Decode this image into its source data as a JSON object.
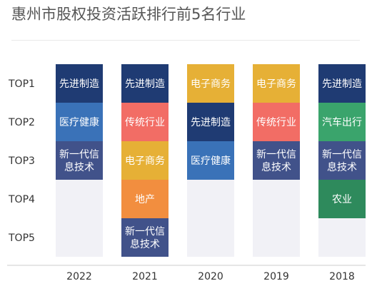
{
  "title": "惠州市股权投资活跃排行前5名行业",
  "colors": {
    "先进制造": "#1f3b73",
    "医疗健康": "#3a72b8",
    "新一代信息技术": "#41528a",
    "传统行业": "#f26d65",
    "电子商务": "#e6b036",
    "地产": "#f28e3f",
    "汽车出行": "#3aa46c",
    "农业": "#2e8a5c",
    "empty": "#f1f1f6"
  },
  "chart_data": {
    "type": "table",
    "title": "惠州市股权投资活跃排行前5名行业",
    "rows": [
      "TOP1",
      "TOP2",
      "TOP3",
      "TOP4",
      "TOP5"
    ],
    "columns": [
      "2022",
      "2021",
      "2020",
      "2019",
      "2018"
    ],
    "cells": {
      "2022": [
        "先进制造",
        "医疗健康",
        "新一代信息技术",
        "",
        ""
      ],
      "2021": [
        "先进制造",
        "传统行业",
        "电子商务",
        "地产",
        "新一代信息技术"
      ],
      "2020": [
        "电子商务",
        "先进制造",
        "医疗健康",
        "",
        ""
      ],
      "2019": [
        "电子商务",
        "传统行业",
        "新一代信息技术",
        "",
        ""
      ],
      "2018": [
        "先进制造",
        "汽车出行",
        "新一代信息技术",
        "农业",
        ""
      ]
    },
    "display_lines": {
      "新一代信息技术": [
        "新一代信",
        "息技术"
      ]
    }
  }
}
